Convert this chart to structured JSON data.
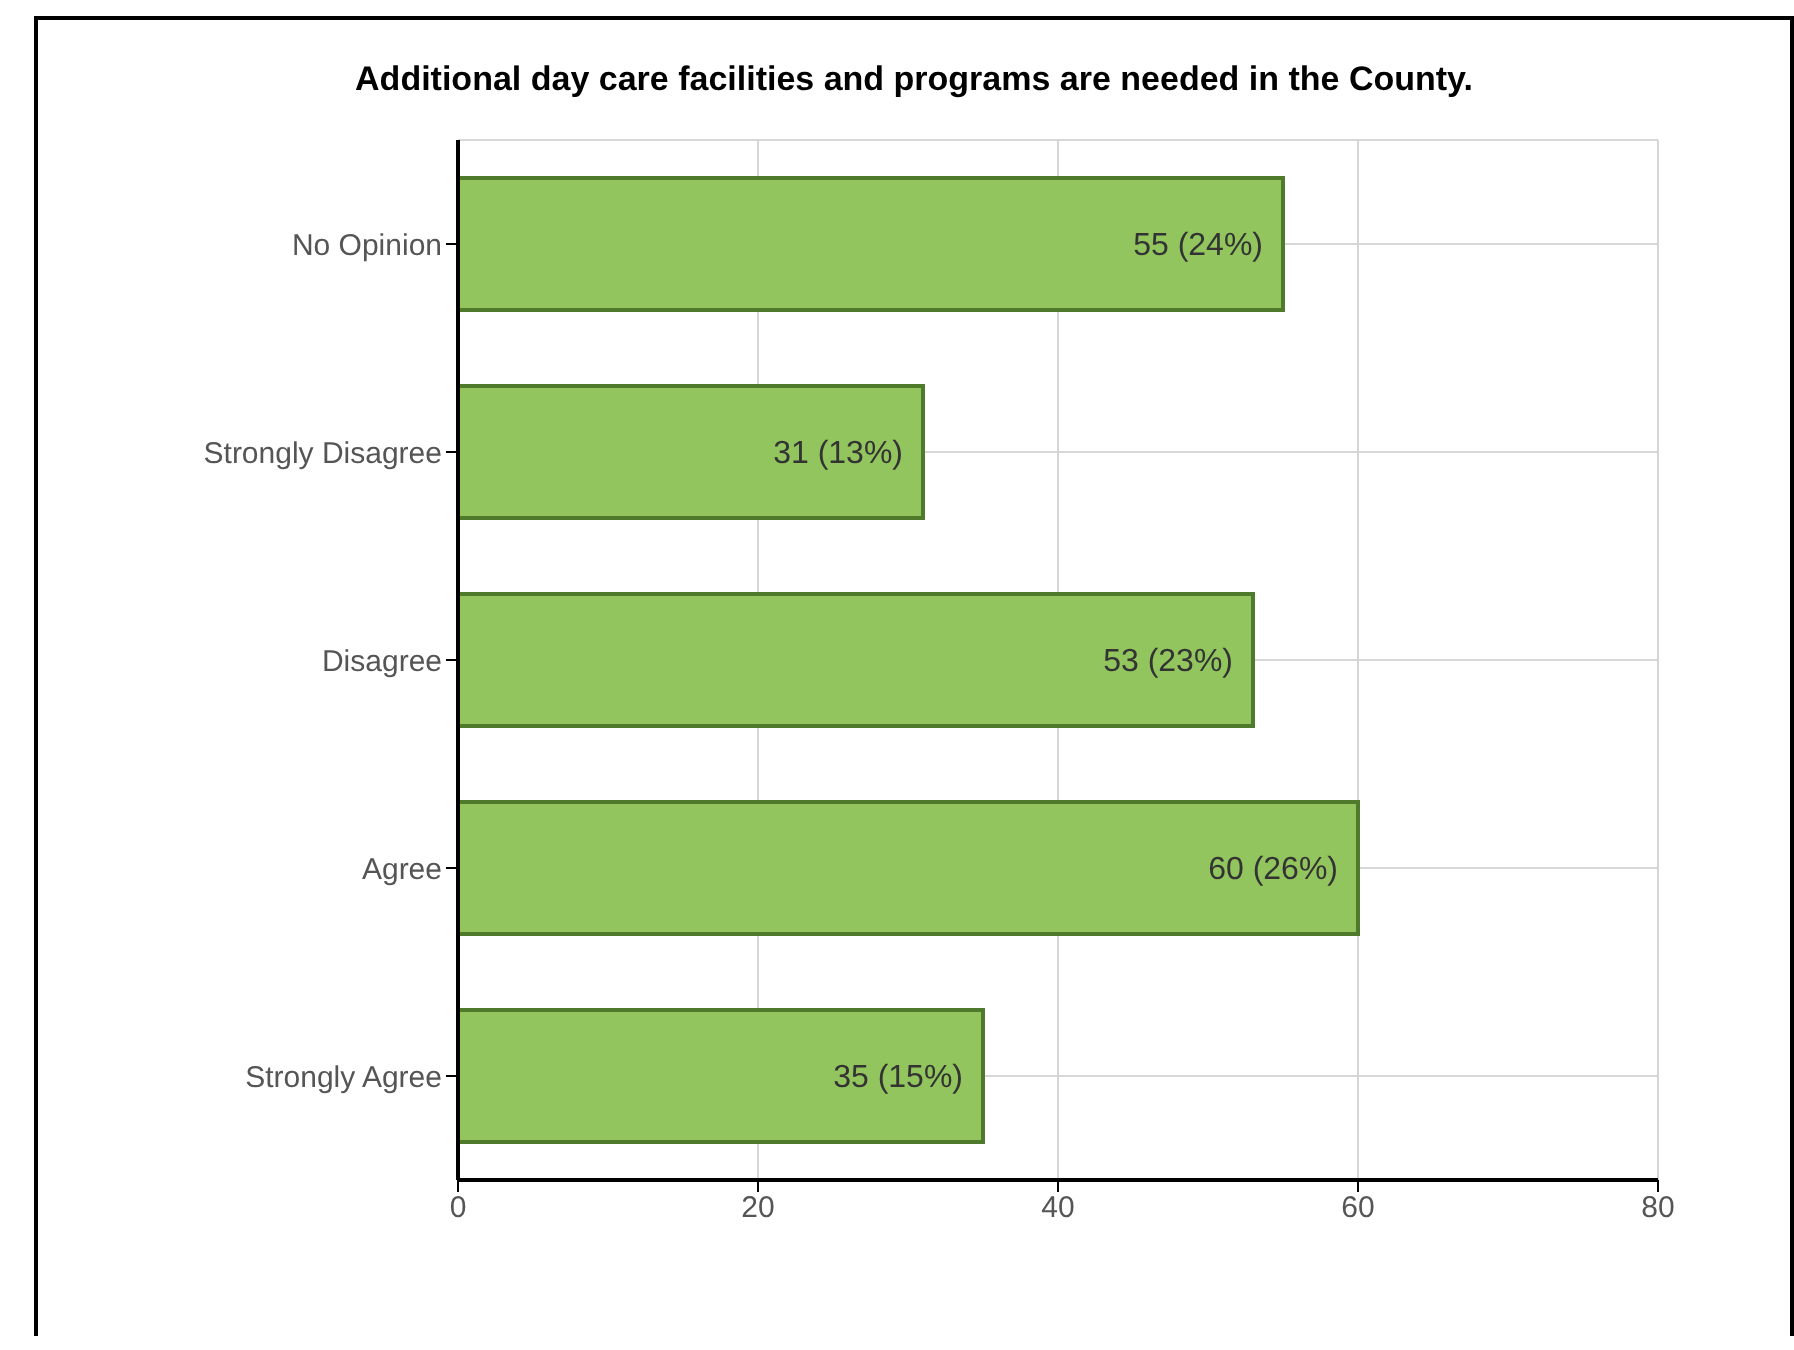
{
  "chart_data": {
    "type": "bar",
    "orientation": "horizontal",
    "title": "Additional day care facilities and programs are needed in the County.",
    "categories": [
      "No Opinion",
      "Strongly Disagree",
      "Disagree",
      "Agree",
      "Strongly Agree"
    ],
    "values": [
      55,
      31,
      53,
      60,
      35
    ],
    "value_labels": [
      "55 (24%)",
      "31 (13%)",
      "53 (23%)",
      "60 (26%)",
      "35 (15%)"
    ],
    "color": "#92c55e",
    "xlim": [
      0,
      80
    ],
    "xticks": [
      0,
      20,
      40,
      60,
      80
    ],
    "grid": true
  }
}
